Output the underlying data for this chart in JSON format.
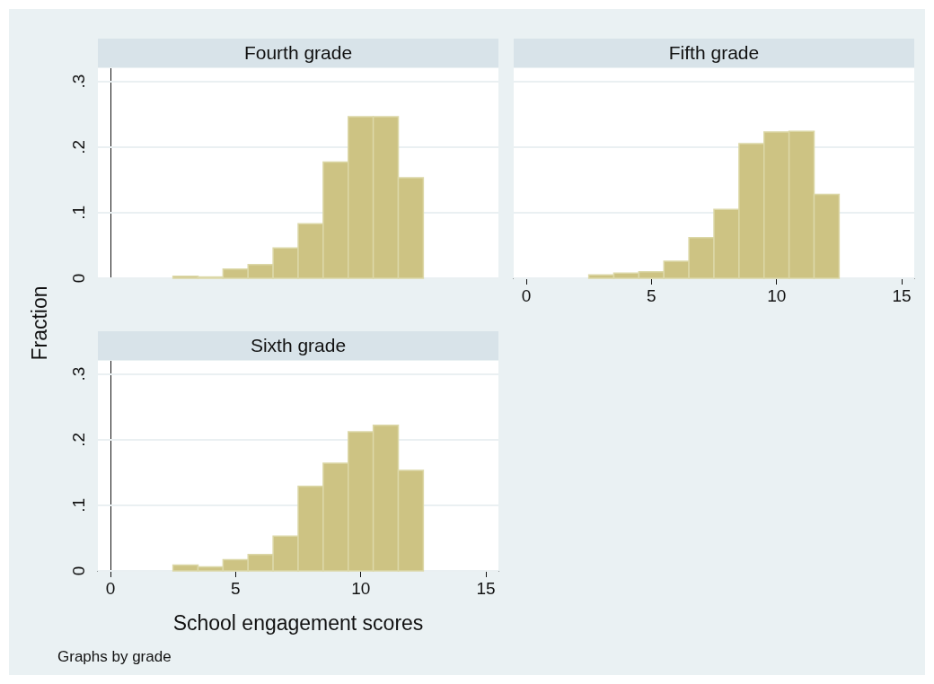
{
  "chart_data": [
    {
      "type": "histogram",
      "title": "Fourth grade",
      "bins": [
        2.5,
        3.5,
        4.5,
        5.5,
        6.5,
        7.5,
        8.5,
        9.5,
        10.5,
        11.5,
        12.5
      ],
      "values": [
        0.003,
        0.002,
        0.014,
        0.021,
        0.046,
        0.083,
        0.177,
        0.246,
        0.246,
        0.153
      ],
      "color": "#cdc383",
      "xlim": [
        -0.5,
        15.5
      ],
      "xticks": [
        0,
        5,
        10,
        15
      ],
      "ylim": [
        0,
        0.32
      ],
      "yticks": [
        0,
        {
          "value": 0.1,
          "label": ".1"
        },
        {
          "value": 0.2,
          "label": ".2"
        },
        {
          "value": 0.3,
          "label": ".3"
        }
      ],
      "grid": "y",
      "tick_labels": "y"
    },
    {
      "type": "histogram",
      "title": "Fifth grade",
      "bins": [
        2.5,
        3.5,
        4.5,
        5.5,
        6.5,
        7.5,
        8.5,
        9.5,
        10.5,
        11.5,
        12.5
      ],
      "values": [
        0.005,
        0.008,
        0.01,
        0.026,
        0.062,
        0.105,
        0.205,
        0.223,
        0.224,
        0.128
      ],
      "color": "#cdc383",
      "xlim": [
        -0.5,
        15.5
      ],
      "xticks": [
        0,
        5,
        10,
        15
      ],
      "ylim": [
        0,
        0.32
      ],
      "yticks": [
        0,
        0.1,
        0.2,
        0.3
      ],
      "grid": "y",
      "tick_labels": "x"
    },
    {
      "type": "histogram",
      "title": "Sixth grade",
      "xlabel": "School engagement scores",
      "ylabel": "Fraction",
      "annotations": [
        "Graphs by grade"
      ],
      "bins": [
        2.5,
        3.5,
        4.5,
        5.5,
        6.5,
        7.5,
        8.5,
        9.5,
        10.5,
        11.5,
        12.5
      ],
      "values": [
        0.009,
        0.006,
        0.017,
        0.025,
        0.053,
        0.129,
        0.164,
        0.212,
        0.222,
        0.153
      ],
      "color": "#cdc383",
      "xlim": [
        -0.5,
        15.5
      ],
      "xticks": [
        0,
        5,
        10,
        15
      ],
      "ylim": [
        0,
        0.32
      ],
      "yticks": [
        0,
        {
          "value": 0.1,
          "label": ".1"
        },
        {
          "value": 0.2,
          "label": ".2"
        },
        {
          "value": 0.3,
          "label": ".3"
        }
      ],
      "grid": "y"
    }
  ]
}
